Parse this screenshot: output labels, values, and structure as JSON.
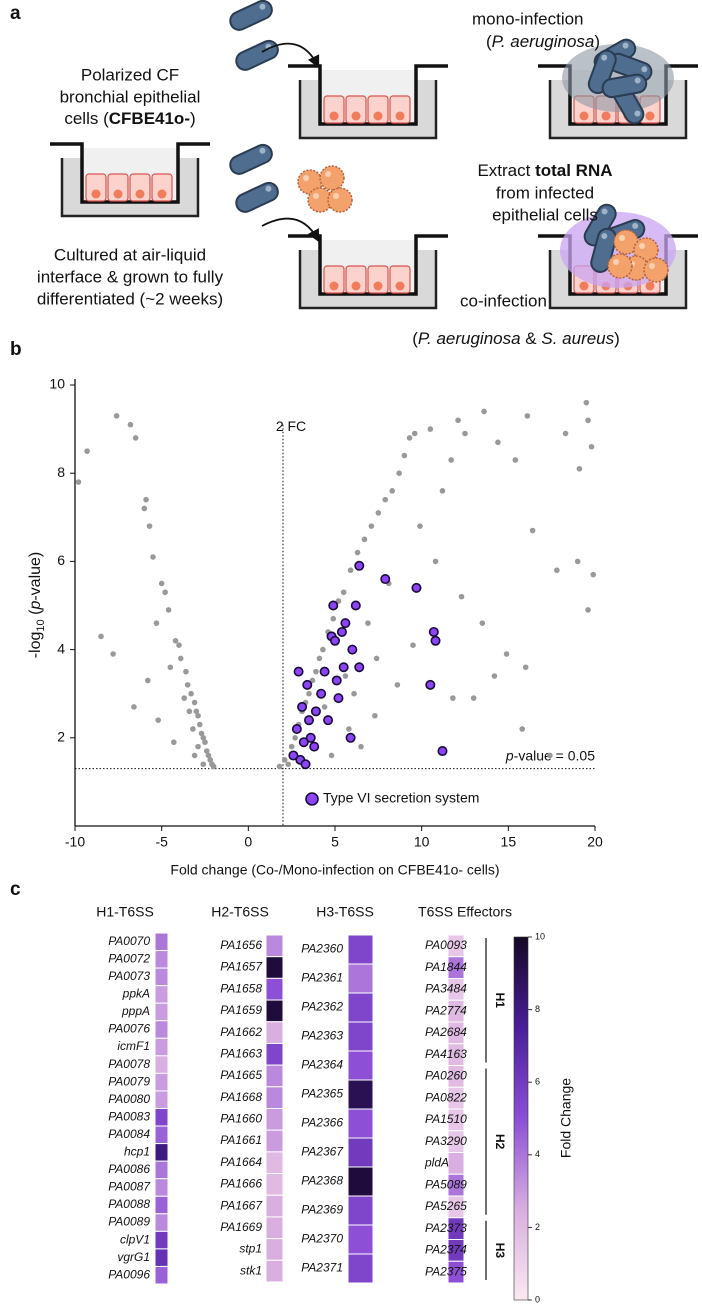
{
  "panel_a": {
    "label": "a",
    "cells": [
      "Polarized CF",
      "bronchial epithelial",
      [
        "cells (",
        "CFBE41o-",
        ")"
      ]
    ],
    "culture": [
      "Cultured at air-liquid",
      "interface & grown to fully",
      "differentiated (~2 weeks)"
    ],
    "mono": [
      "mono-infection",
      [
        "(",
        "P. aeruginosa",
        ")"
      ]
    ],
    "extract": [
      [
        "Extract ",
        "total RNA"
      ],
      "from infected",
      "epithelial cells"
    ],
    "co": [
      "co-infection",
      [
        "(",
        "P. aeruginosa",
        " & ",
        "S. aureus",
        ")"
      ]
    ]
  },
  "chart_data": [
    {
      "type": "scatter",
      "panel": "b",
      "xlabel": "Fold change (Co-/Mono-infection on CFBE41o- cells)",
      "ylabel": [
        "-log",
        "10",
        " (",
        "p",
        "-value)"
      ],
      "xlim": [
        -10,
        20
      ],
      "ylim": [
        0,
        10
      ],
      "xticks": [
        -10,
        -5,
        0,
        5,
        10,
        15,
        20
      ],
      "yticks": [
        2,
        4,
        6,
        8,
        10
      ],
      "vline": {
        "x": 2,
        "label": "2 FC"
      },
      "hline": {
        "y": 1.3,
        "label": [
          "p",
          "-value = 0.05"
        ]
      },
      "series": [
        {
          "color": "#999999",
          "x": [
            -9.8,
            -9.3,
            -7.6,
            -6.8,
            -6.5,
            -6.0,
            -5.9,
            -5.7,
            -5.5,
            -5.0,
            -4.8,
            -5.3,
            -4.6,
            -4.2,
            -4.0,
            -3.9,
            -4.5,
            -3.6,
            -3.5,
            -3.3,
            -3.1,
            -3.0,
            -2.9,
            -2.8,
            -2.7,
            -2.6,
            -2.5,
            -2.4,
            -2.3,
            -2.2,
            -2.1,
            -2.0,
            -3.2,
            -3.4,
            -2.9,
            -5.8,
            -5.2,
            -6.6,
            -7.8,
            -8.5,
            -4.3,
            -3.7,
            -3.1,
            -2.6,
            1.8,
            2.1,
            2.3,
            2.5,
            2.7,
            2.9,
            3.1,
            3.3,
            3.5,
            3.7,
            3.9,
            4.1,
            4.3,
            4.6,
            4.9,
            5.2,
            5.5,
            5.9,
            6.3,
            6.7,
            7.1,
            7.5,
            7.9,
            8.3,
            8.7,
            9.0,
            9.3,
            9.6,
            10.5,
            11.2,
            11.7,
            12.5,
            13.6,
            12.1,
            14.4,
            15.4,
            16.1,
            18.3,
            19.5,
            19.6,
            19.8,
            19.1,
            19.9,
            19.6,
            19.0,
            17.8,
            16.4,
            16.0,
            14.9,
            13.5,
            14.2,
            12.3,
            11.8,
            9.5,
            8.6,
            7.3,
            6.5,
            5.8,
            4.8,
            4.4,
            5.6,
            6.9,
            8.1,
            9.9,
            10.8,
            13.0,
            15.8,
            17.4,
            7.4,
            6.1
          ],
          "values": [
            7.8,
            8.5,
            9.3,
            9.1,
            8.8,
            7.2,
            7.4,
            6.8,
            6.1,
            5.5,
            5.3,
            4.6,
            4.9,
            4.2,
            4.1,
            3.8,
            3.6,
            3.5,
            3.2,
            3.0,
            2.8,
            2.6,
            2.5,
            2.3,
            2.1,
            2.0,
            1.9,
            1.7,
            1.6,
            1.5,
            1.4,
            1.35,
            2.2,
            2.6,
            1.8,
            3.3,
            2.4,
            2.7,
            3.9,
            4.3,
            1.9,
            2.9,
            1.6,
            1.4,
            1.35,
            1.5,
            1.4,
            1.8,
            2.0,
            2.3,
            2.6,
            2.8,
            3.0,
            3.3,
            3.5,
            3.8,
            4.0,
            4.4,
            4.7,
            5.1,
            5.3,
            5.8,
            6.2,
            6.5,
            6.8,
            7.1,
            7.4,
            7.6,
            8.0,
            8.4,
            8.8,
            8.9,
            9.0,
            7.6,
            8.3,
            8.9,
            9.4,
            9.2,
            8.7,
            8.3,
            9.3,
            8.9,
            9.6,
            9.2,
            8.6,
            8.1,
            5.7,
            4.9,
            6.0,
            5.8,
            6.7,
            3.6,
            3.9,
            4.6,
            3.4,
            5.2,
            2.9,
            4.1,
            3.2,
            2.5,
            1.8,
            2.2,
            1.6,
            2.7,
            3.4,
            4.6,
            5.5,
            6.8,
            6.0,
            2.9,
            2.2,
            1.6,
            3.8,
            3.0
          ]
        },
        {
          "name": "Type VI secretion system",
          "color": "#8b45f5",
          "x": [
            3.0,
            2.6,
            3.2,
            2.8,
            3.5,
            3.1,
            3.9,
            4.2,
            3.4,
            2.9,
            4.4,
            5.1,
            5.5,
            4.8,
            5.0,
            5.4,
            5.6,
            6.0,
            6.4,
            5.2,
            4.6,
            3.8,
            3.3,
            4.9,
            6.2,
            6.4,
            7.9,
            9.7,
            10.7,
            10.8,
            10.5,
            11.2,
            5.9,
            3.6
          ],
          "values": [
            1.5,
            1.6,
            1.9,
            2.2,
            2.4,
            2.7,
            2.6,
            3.0,
            3.2,
            3.5,
            3.5,
            3.3,
            3.6,
            4.3,
            4.2,
            4.4,
            4.6,
            4.0,
            3.6,
            2.9,
            2.4,
            1.8,
            1.4,
            5.0,
            5.0,
            5.9,
            5.6,
            5.4,
            4.4,
            4.2,
            3.2,
            1.7,
            2.0,
            2.0
          ]
        }
      ]
    },
    {
      "type": "heatmap",
      "panel": "c",
      "colorbar": {
        "label": "Fold Change",
        "lim": [
          0,
          10
        ],
        "ticks": [
          0,
          2,
          4,
          6,
          8,
          10
        ],
        "colors": [
          "#fbe9f1",
          "#d9aee0",
          "#8c4fd6",
          "#4a1e9a",
          "#140826"
        ]
      },
      "columns": [
        {
          "title": "H1-T6SS",
          "rows": [
            "PA0070",
            "PA0072",
            "PA0073",
            "ppkA",
            "pppA",
            "PA0076",
            "icmF1",
            "PA0078",
            "PA0079",
            "PA0080",
            "PA0083",
            "PA0084",
            "hcp1",
            "PA0086",
            "PA0087",
            "PA0088",
            "PA0089",
            "clpV1",
            "vgrG1",
            "PA0096"
          ],
          "values": [
            4,
            3.5,
            3.5,
            3,
            3,
            3.5,
            3,
            2.5,
            3,
            3,
            5.5,
            4.5,
            8,
            4,
            3.5,
            4.5,
            3.5,
            6,
            6.5,
            4.5
          ]
        },
        {
          "title": "H2-T6SS",
          "rows": [
            "PA1656",
            "PA1657",
            "PA1658",
            "PA1659",
            "PA1662",
            "PA1663",
            "PA1665",
            "PA1668",
            "PA1660",
            "PA1661",
            "PA1664",
            "PA1666",
            "PA1667",
            "PA1669",
            "stp1",
            "stk1"
          ],
          "values": [
            3.5,
            9.5,
            5,
            9.5,
            2.5,
            5.5,
            3.5,
            3.5,
            3,
            3,
            2,
            2,
            2.5,
            2.5,
            2.5,
            2.5
          ]
        },
        {
          "title": "H3-T6SS",
          "rows": [
            "PA2360",
            "PA2361",
            "PA2362",
            "PA2363",
            "PA2364",
            "PA2365",
            "PA2366",
            "PA2367",
            "PA2368",
            "PA2369",
            "PA2370",
            "PA2371"
          ],
          "values": [
            5.5,
            4,
            5.5,
            5.5,
            5,
            9,
            5,
            6,
            9.5,
            5.5,
            5,
            5.5
          ]
        },
        {
          "title": "T6SS Effectors",
          "groups": [
            {
              "label": "H1",
              "rows": [
                "PA0093",
                "PA1844",
                "PA3484",
                "PA2774",
                "PA2684",
                "PA4163"
              ],
              "values": [
                1.5,
                4,
                1.5,
                2,
                2,
                2
              ]
            },
            {
              "label": "H2",
              "rows": [
                "PA0260",
                "PA0822",
                "PA1510",
                "PA3290",
                "pldA",
                "PA5089",
                "PA5265"
              ],
              "values": [
                2,
                1.5,
                1.5,
                1.5,
                2.5,
                4,
                1.5
              ]
            },
            {
              "label": "H3",
              "rows": [
                "PA2373",
                "PA2374",
                "PA2375"
              ],
              "values": [
                6,
                6,
                5
              ]
            }
          ]
        }
      ]
    }
  ]
}
